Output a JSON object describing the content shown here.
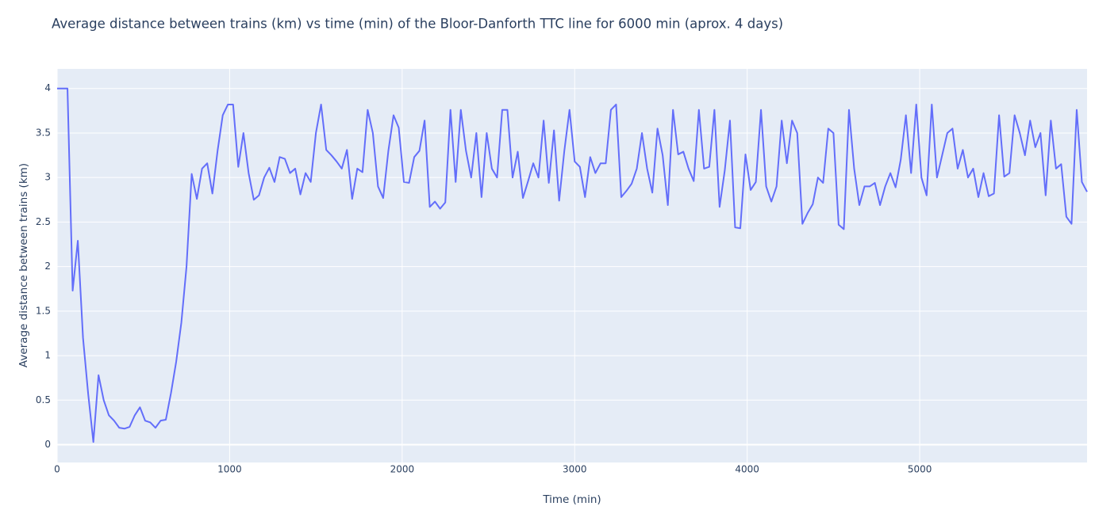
{
  "chart_data": {
    "type": "line",
    "title": "Average distance between trains (km) vs time (min) of the Bloor-Danforth TTC line for 6000 min (aprox. 4 days)",
    "x_label": "Time (min)",
    "y_label": "Average distance between trains (km)",
    "xlim": [
      0,
      5970
    ],
    "ylim": [
      -0.2,
      4.22
    ],
    "xticks": [
      0,
      1000,
      2000,
      3000,
      4000,
      5000
    ],
    "yticks": [
      0,
      0.5,
      1,
      1.5,
      2,
      2.5,
      3,
      3.5,
      4
    ],
    "grid": true,
    "series": [
      {
        "color": "#636efa",
        "x": [
          0,
          30,
          60,
          90,
          120,
          150,
          180,
          210,
          240,
          270,
          300,
          330,
          360,
          390,
          420,
          450,
          480,
          510,
          540,
          570,
          600,
          630,
          660,
          690,
          720,
          750,
          780,
          810,
          840,
          870,
          900,
          930,
          960,
          990,
          1020,
          1050,
          1080,
          1110,
          1140,
          1170,
          1200,
          1230,
          1260,
          1290,
          1320,
          1350,
          1380,
          1410,
          1440,
          1470,
          1500,
          1530,
          1560,
          1590,
          1620,
          1650,
          1680,
          1710,
          1740,
          1770,
          1800,
          1830,
          1860,
          1890,
          1920,
          1950,
          1980,
          2010,
          2040,
          2070,
          2100,
          2130,
          2160,
          2190,
          2220,
          2250,
          2280,
          2310,
          2340,
          2370,
          2400,
          2430,
          2460,
          2490,
          2520,
          2550,
          2580,
          2610,
          2640,
          2670,
          2700,
          2730,
          2760,
          2790,
          2820,
          2850,
          2880,
          2910,
          2940,
          2970,
          3000,
          3030,
          3060,
          3090,
          3120,
          3150,
          3180,
          3210,
          3240,
          3270,
          3300,
          3330,
          3360,
          3390,
          3420,
          3450,
          3480,
          3510,
          3540,
          3570,
          3600,
          3630,
          3660,
          3690,
          3720,
          3750,
          3780,
          3810,
          3840,
          3870,
          3900,
          3930,
          3960,
          3990,
          4020,
          4050,
          4080,
          4110,
          4140,
          4170,
          4200,
          4230,
          4260,
          4290,
          4320,
          4350,
          4380,
          4410,
          4440,
          4470,
          4500,
          4530,
          4560,
          4590,
          4620,
          4650,
          4680,
          4710,
          4740,
          4770,
          4800,
          4830,
          4860,
          4890,
          4920,
          4950,
          4980,
          5010,
          5040,
          5070,
          5100,
          5130,
          5160,
          5190,
          5220,
          5250,
          5280,
          5310,
          5340,
          5370,
          5400,
          5430,
          5460,
          5490,
          5520,
          5550,
          5580,
          5610,
          5640,
          5670,
          5700,
          5730,
          5760,
          5790,
          5820,
          5850,
          5880,
          5910,
          5940,
          5970
        ],
        "values": [
          4,
          4,
          4,
          1.73,
          2.29,
          1.2,
          0.57,
          0.03,
          0.78,
          0.5,
          0.33,
          0.27,
          0.19,
          0.18,
          0.2,
          0.33,
          0.42,
          0.27,
          0.25,
          0.19,
          0.27,
          0.28,
          0.58,
          0.93,
          1.37,
          2.0,
          3.04,
          2.76,
          3.1,
          3.16,
          2.82,
          3.3,
          3.7,
          3.82,
          3.82,
          3.12,
          3.5,
          3.05,
          2.75,
          2.8,
          3.0,
          3.11,
          2.95,
          3.23,
          3.21,
          3.05,
          3.1,
          2.81,
          3.05,
          2.95,
          3.5,
          3.82,
          3.31,
          3.25,
          3.18,
          3.1,
          3.31,
          2.76,
          3.1,
          3.06,
          3.76,
          3.5,
          2.9,
          2.77,
          3.3,
          3.7,
          3.56,
          2.95,
          2.94,
          3.23,
          3.3,
          3.64,
          2.67,
          2.73,
          2.65,
          2.72,
          3.76,
          2.95,
          3.76,
          3.3,
          3.0,
          3.5,
          2.78,
          3.5,
          3.1,
          3.0,
          3.76,
          3.76,
          3.0,
          3.29,
          2.77,
          2.96,
          3.16,
          3.0,
          3.64,
          2.94,
          3.53,
          2.74,
          3.3,
          3.76,
          3.18,
          3.12,
          2.78,
          3.23,
          3.05,
          3.16,
          3.16,
          3.76,
          3.82,
          2.78,
          2.85,
          2.93,
          3.1,
          3.5,
          3.1,
          2.83,
          3.55,
          3.25,
          2.69,
          3.76,
          3.26,
          3.29,
          3.1,
          2.96,
          3.76,
          3.1,
          3.12,
          3.76,
          2.67,
          3.08,
          3.64,
          2.44,
          2.43,
          3.26,
          2.86,
          2.95,
          3.76,
          2.9,
          2.73,
          2.9,
          3.64,
          3.16,
          3.64,
          3.5,
          2.48,
          2.6,
          2.7,
          3.0,
          2.94,
          3.55,
          3.5,
          2.47,
          2.42,
          3.76,
          3.1,
          2.69,
          2.9,
          2.9,
          2.94,
          2.69,
          2.9,
          3.05,
          2.89,
          3.2,
          3.7,
          3.05,
          3.82,
          3.0,
          2.8,
          3.82,
          3.0,
          3.25,
          3.5,
          3.55,
          3.1,
          3.31,
          3.0,
          3.1,
          2.78,
          3.05,
          2.79,
          2.82,
          3.7,
          3.01,
          3.05,
          3.7,
          3.5,
          3.25,
          3.64,
          3.34,
          3.5,
          2.8,
          3.64,
          3.1,
          3.15,
          2.56,
          2.48,
          3.76,
          2.95,
          2.84
        ]
      }
    ]
  }
}
